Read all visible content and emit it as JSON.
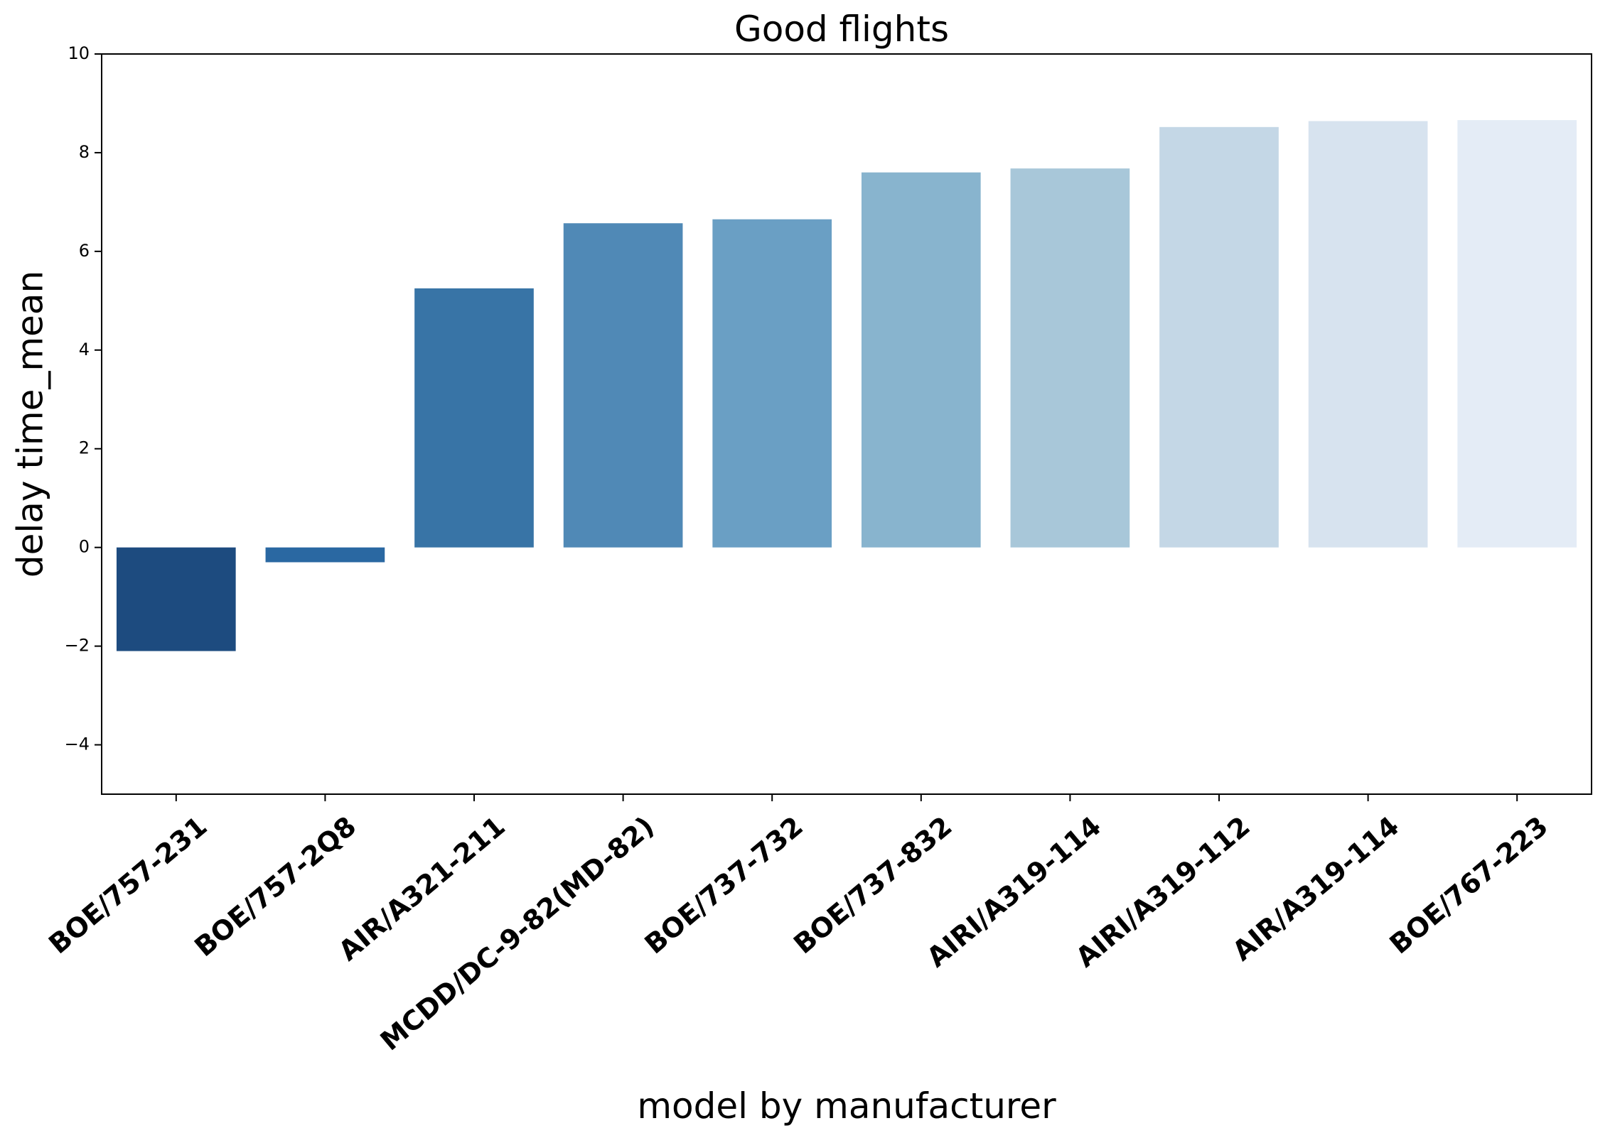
{
  "chart_data": {
    "type": "bar",
    "title": "Good flights",
    "xlabel": "model by manufacturer",
    "ylabel": "delay time_mean",
    "categories": [
      "BOE/757-231",
      "BOE/757-2Q8",
      "AIR/A321-211",
      "MCDD/DC-9-82(MD-82)",
      "BOE/737-732",
      "BOE/737-832",
      "AIRI/A319-114",
      "AIRI/A319-112",
      "AIR/A319-114",
      "BOE/767-223"
    ],
    "values": [
      -2.1,
      -0.3,
      5.25,
      6.57,
      6.65,
      7.6,
      7.68,
      8.52,
      8.64,
      8.66
    ],
    "colors": [
      "#1d4b7f",
      "#2a68a2",
      "#3874a6",
      "#5089b6",
      "#6a9fc4",
      "#88b4ce",
      "#a8c7d9",
      "#c4d7e6",
      "#d7e3ef",
      "#e4ecf6"
    ],
    "ylim": [
      -5,
      10
    ],
    "yticks": [
      -4,
      -2,
      0,
      2,
      4,
      6,
      8,
      10
    ],
    "ytick_labels": [
      "−4",
      "−2",
      "0",
      "2",
      "4",
      "6",
      "8",
      "10"
    ],
    "grid": false,
    "legend": "none"
  }
}
